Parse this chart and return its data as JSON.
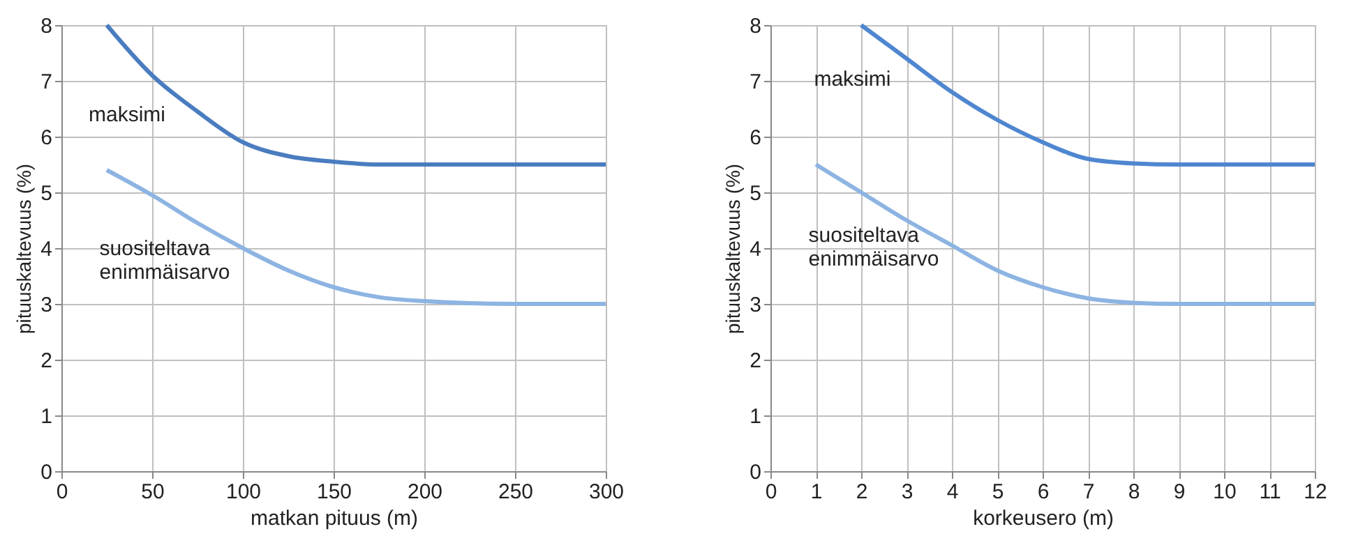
{
  "chart_data": [
    {
      "type": "line",
      "xlabel": "matkan pituus (m)",
      "ylabel": "pituuskaltevuus (%)",
      "xlim": [
        0,
        300
      ],
      "xticks": [
        0,
        50,
        100,
        150,
        200,
        250,
        300
      ],
      "ylim": [
        0,
        8
      ],
      "yticks": [
        0,
        1,
        2,
        3,
        4,
        5,
        6,
        7,
        8
      ],
      "grid": true,
      "marker": "none",
      "line_style": "solid",
      "series": [
        {
          "name": "maksimi",
          "color": "#4a7cc0",
          "x": [
            25,
            50,
            75,
            100,
            125,
            150,
            175,
            200,
            250,
            300
          ],
          "values": [
            8.0,
            7.1,
            6.45,
            5.9,
            5.65,
            5.55,
            5.5,
            5.5,
            5.5,
            5.5
          ]
        },
        {
          "name": "suositeltava enimmäisarvo",
          "color": "#8db4e2",
          "x": [
            25,
            50,
            75,
            100,
            125,
            150,
            175,
            200,
            250,
            300
          ],
          "values": [
            5.4,
            4.95,
            4.45,
            4.0,
            3.6,
            3.3,
            3.12,
            3.05,
            3.0,
            3.0
          ]
        }
      ]
    },
    {
      "type": "line",
      "xlabel": "korkeusero (m)",
      "ylabel": "pituuskaltevuus (%)",
      "xlim": [
        0,
        12
      ],
      "xticks": [
        0,
        1,
        2,
        3,
        4,
        5,
        6,
        7,
        8,
        9,
        10,
        11,
        12
      ],
      "ylim": [
        0,
        8
      ],
      "yticks": [
        0,
        1,
        2,
        3,
        4,
        5,
        6,
        7,
        8
      ],
      "grid": true,
      "marker": "none",
      "line_style": "solid",
      "series": [
        {
          "name": "maksimi",
          "color": "#4f86d0",
          "x": [
            2,
            3,
            4,
            5,
            6,
            7,
            8,
            9,
            10,
            12
          ],
          "values": [
            8.0,
            7.4,
            6.8,
            6.3,
            5.9,
            5.6,
            5.52,
            5.5,
            5.5,
            5.5
          ]
        },
        {
          "name": "suositeltava enimmäisarvo",
          "color": "#8db4e2",
          "x": [
            1,
            2,
            3,
            4,
            5,
            6,
            7,
            8,
            9,
            12
          ],
          "values": [
            5.5,
            5.0,
            4.5,
            4.05,
            3.6,
            3.3,
            3.1,
            3.02,
            3.0,
            3.0
          ]
        }
      ]
    }
  ]
}
